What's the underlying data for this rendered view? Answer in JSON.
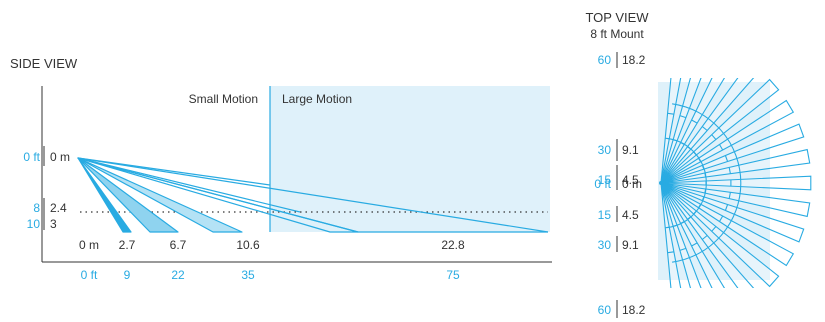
{
  "colors": {
    "accent": "#29abe2",
    "zone_fill": "#dff1fa",
    "text": "#333333"
  },
  "side_view": {
    "title": "SIDE VIEW",
    "zones": {
      "small": "Small Motion",
      "large": "Large Motion"
    },
    "height_labels": [
      {
        "ft": "0 ft",
        "m": "0 m"
      },
      {
        "ft": "8",
        "m": "2.4"
      },
      {
        "ft": "10",
        "m": "3"
      }
    ],
    "distance_m": [
      "0 m",
      "2.7",
      "6.7",
      "10.6",
      "22.8"
    ],
    "distance_ft": [
      "0 ft",
      "9",
      "22",
      "35",
      "75"
    ]
  },
  "top_view": {
    "title": "TOP VIEW",
    "subtitle": "8 ft Mount",
    "scale": [
      {
        "ft": "60",
        "m": "18.2"
      },
      {
        "ft": "30",
        "m": "9.1"
      },
      {
        "ft": "15",
        "m": "4.5"
      },
      {
        "ft": "0 ft",
        "m": "0 m"
      },
      {
        "ft": "15",
        "m": "4.5"
      },
      {
        "ft": "30",
        "m": "9.1"
      },
      {
        "ft": "60",
        "m": "18.2"
      }
    ]
  }
}
